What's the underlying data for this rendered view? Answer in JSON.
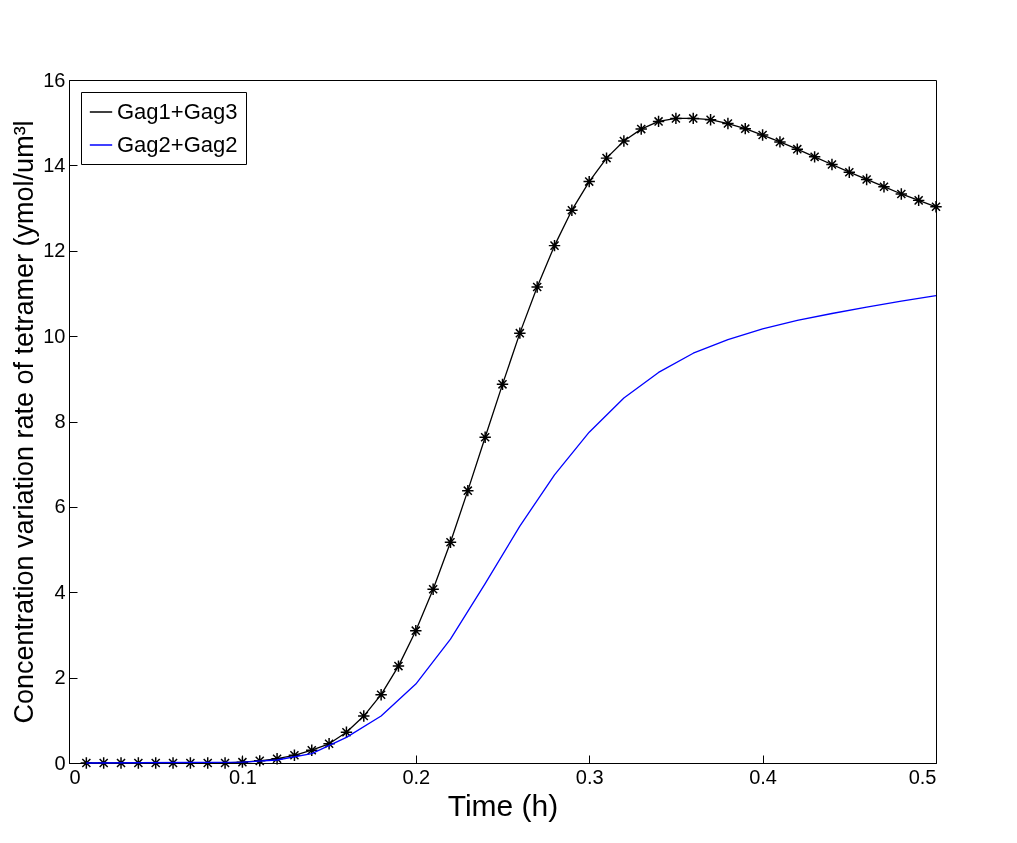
{
  "chart_data": {
    "type": "line",
    "xlabel": "Time (h)",
    "ylabel": "Concentration variation rate of tetramer (ymol/um³l",
    "x": [
      0.01,
      0.02,
      0.03,
      0.04,
      0.05,
      0.06,
      0.07,
      0.08,
      0.09,
      0.1,
      0.11,
      0.12,
      0.13,
      0.14,
      0.15,
      0.16,
      0.17,
      0.18,
      0.19,
      0.2,
      0.21,
      0.22,
      0.23,
      0.24,
      0.25,
      0.26,
      0.27,
      0.28,
      0.29,
      0.3,
      0.31,
      0.32,
      0.33,
      0.34,
      0.35,
      0.36,
      0.37,
      0.38,
      0.39,
      0.4,
      0.41,
      0.42,
      0.43,
      0.44,
      0.45,
      0.46,
      0.47,
      0.48,
      0.49,
      0.5
    ],
    "series": [
      {
        "name": "Gag1+Gag3",
        "color": "#000000",
        "marker": "star",
        "values": [
          0,
          0,
          0,
          0,
          0,
          0,
          0,
          0,
          0,
          0.02,
          0.05,
          0.1,
          0.18,
          0.3,
          0.45,
          0.72,
          1.1,
          1.6,
          2.27,
          3.1,
          4.07,
          5.17,
          6.38,
          7.63,
          8.87,
          10.07,
          11.15,
          12.12,
          12.95,
          13.62,
          14.17,
          14.57,
          14.85,
          15.03,
          15.1,
          15.1,
          15.07,
          14.98,
          14.86,
          14.71,
          14.55,
          14.38,
          14.2,
          14.02,
          13.84,
          13.67,
          13.5,
          13.33,
          13.18,
          13.03
        ]
      },
      {
        "name": "Gag2+Gag2",
        "color": "#0000ff",
        "marker": "none",
        "x": [
          0.01,
          0.1,
          0.12,
          0.14,
          0.16,
          0.18,
          0.2,
          0.22,
          0.24,
          0.26,
          0.28,
          0.3,
          0.32,
          0.34,
          0.36,
          0.38,
          0.4,
          0.42,
          0.44,
          0.46,
          0.48,
          0.5
        ],
        "values": [
          0,
          0.02,
          0.07,
          0.22,
          0.6,
          1.1,
          1.85,
          2.9,
          4.2,
          5.55,
          6.75,
          7.75,
          8.55,
          9.15,
          9.6,
          9.92,
          10.17,
          10.37,
          10.53,
          10.68,
          10.82,
          10.95
        ]
      }
    ],
    "xlim": [
      0,
      0.5
    ],
    "xticks": [
      0,
      0.1,
      0.2,
      0.3,
      0.4,
      0.5
    ],
    "ylim": [
      0,
      16
    ],
    "yticks": [
      0,
      2,
      4,
      6,
      8,
      10,
      12,
      14,
      16
    ],
    "grid": false,
    "legend": "top left"
  }
}
